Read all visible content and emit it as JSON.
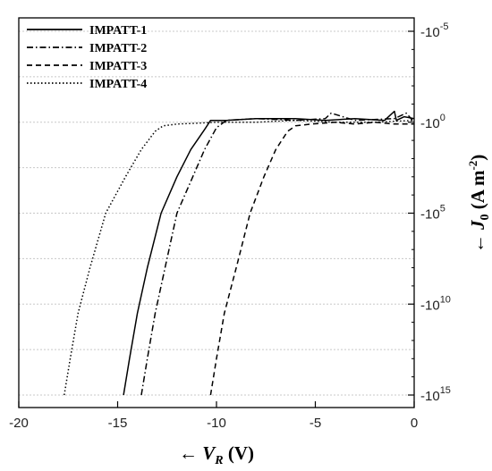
{
  "chart_data": {
    "type": "line",
    "xlabel": "← V_R (V)",
    "ylabel": "← J_0 (A m-2)",
    "xlim": [
      -20,
      0
    ],
    "ylim_log10_neg": [
      -5,
      15
    ],
    "x_ticks": [
      "-20",
      "-15",
      "-10",
      "-5",
      "0"
    ],
    "y_ticks": [
      {
        "base": "-10",
        "exp": "-5"
      },
      {
        "base": "-10",
        "exp": "0"
      },
      {
        "base": "-10",
        "exp": "5"
      },
      {
        "base": "-10",
        "exp": "10"
      },
      {
        "base": "-10",
        "exp": "15"
      }
    ],
    "y_scale": "log (negative current density, increasing magnitude downward)",
    "grid": "horizontal dotted",
    "legend_position": "top-left",
    "series": [
      {
        "name": "IMPATT-1",
        "style": "solid",
        "points": [
          [
            -14.7,
            15
          ],
          [
            -14.4,
            13
          ],
          [
            -14.0,
            10.5
          ],
          [
            -13.5,
            8
          ],
          [
            -12.8,
            5
          ],
          [
            -12.0,
            3
          ],
          [
            -11.3,
            1.5
          ],
          [
            -10.6,
            0.4
          ],
          [
            -10.3,
            -0.1
          ],
          [
            -9.5,
            -0.1
          ],
          [
            -8,
            -0.2
          ],
          [
            -6,
            -0.2
          ],
          [
            -4.5,
            -0.1
          ],
          [
            -3,
            -0.2
          ],
          [
            -1.5,
            -0.1
          ],
          [
            -1.0,
            -0.6
          ],
          [
            -0.9,
            -0.1
          ],
          [
            -0.5,
            -0.3
          ],
          [
            0,
            -0.2
          ]
        ]
      },
      {
        "name": "IMPATT-2",
        "style": "dashdot",
        "points": [
          [
            -13.8,
            15
          ],
          [
            -13.5,
            13
          ],
          [
            -13.1,
            10.5
          ],
          [
            -12.6,
            8
          ],
          [
            -12.0,
            5
          ],
          [
            -11.2,
            3
          ],
          [
            -10.6,
            1.5
          ],
          [
            -10.0,
            0.3
          ],
          [
            -9.5,
            -0.1
          ],
          [
            -8,
            -0.2
          ],
          [
            -6,
            -0.1
          ],
          [
            -4.5,
            -0.2
          ],
          [
            -4.2,
            -0.5
          ],
          [
            -3,
            -0.1
          ],
          [
            -1.0,
            -0.2
          ],
          [
            -0.4,
            -0.5
          ],
          [
            0,
            0
          ]
        ]
      },
      {
        "name": "IMPATT-3",
        "style": "dashed",
        "points": [
          [
            -10.3,
            15
          ],
          [
            -10.0,
            13
          ],
          [
            -9.6,
            10.5
          ],
          [
            -9.0,
            8
          ],
          [
            -8.3,
            5
          ],
          [
            -7.6,
            3
          ],
          [
            -7.0,
            1.5
          ],
          [
            -6.4,
            0.5
          ],
          [
            -6.0,
            0.2
          ],
          [
            -5.2,
            0.1
          ],
          [
            -4,
            0
          ],
          [
            -3,
            0.1
          ],
          [
            -2,
            0
          ],
          [
            -1,
            0.1
          ],
          [
            0,
            0.1
          ]
        ]
      },
      {
        "name": "IMPATT-4",
        "style": "dotted",
        "points": [
          [
            -17.7,
            15
          ],
          [
            -17.4,
            13
          ],
          [
            -17.0,
            10.5
          ],
          [
            -16.4,
            8
          ],
          [
            -15.6,
            5
          ],
          [
            -14.6,
            3
          ],
          [
            -13.8,
            1.5
          ],
          [
            -13.1,
            0.5
          ],
          [
            -12.7,
            0.2
          ],
          [
            -12.0,
            0.1
          ],
          [
            -10,
            0
          ],
          [
            -8,
            0
          ],
          [
            -6,
            -0.1
          ],
          [
            -4,
            0
          ],
          [
            -2,
            0
          ],
          [
            0,
            -0.1
          ]
        ]
      }
    ]
  }
}
